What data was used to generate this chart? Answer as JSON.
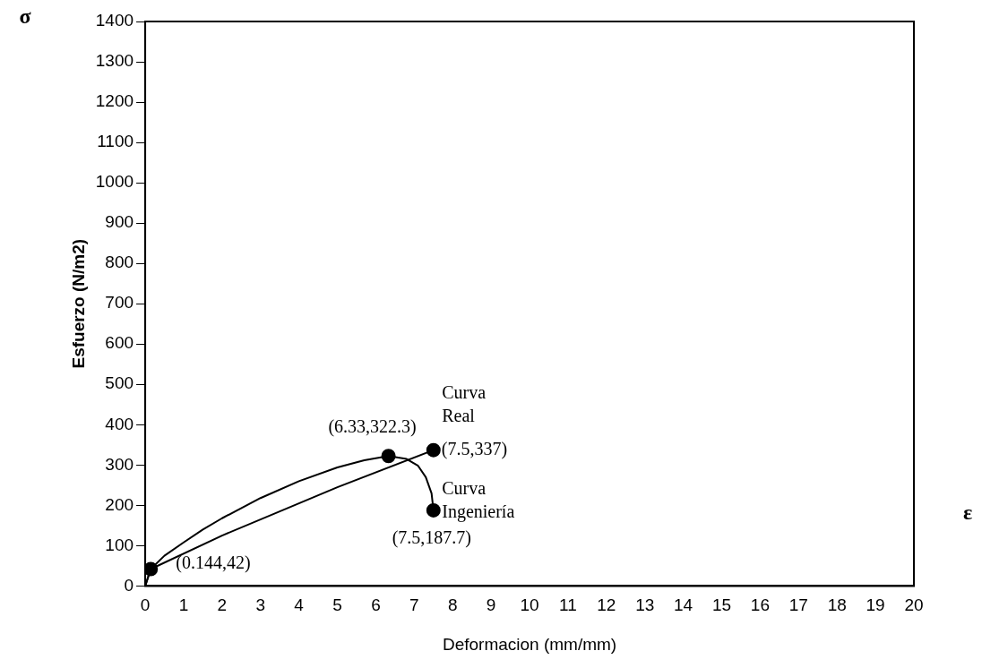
{
  "chart_data": {
    "type": "line",
    "xlabel": "Deformacion (mm/mm)",
    "ylabel": "Esfuerzo (N/m2)",
    "xlim": [
      0,
      20
    ],
    "xticks": [
      0,
      1,
      2,
      3,
      4,
      5,
      6,
      7,
      8,
      9,
      10,
      11,
      12,
      13,
      14,
      15,
      16,
      17,
      18,
      19,
      20
    ],
    "ylim": [
      0,
      1400
    ],
    "yticks": [
      0,
      100,
      200,
      300,
      400,
      500,
      600,
      700,
      800,
      900,
      1000,
      1100,
      1200,
      1300,
      1400
    ],
    "grid": false,
    "legend": false,
    "series": [
      {
        "color": "#000000",
        "marker": "none",
        "x": [
          0,
          0.144,
          0.5,
          1,
          1.5,
          2,
          3,
          4,
          5,
          5.7,
          6.33,
          6.8,
          7.1,
          7.3,
          7.45,
          7.5
        ],
        "values": [
          0,
          42,
          75,
          108,
          140,
          168,
          218,
          260,
          294,
          312,
          322.3,
          315,
          298,
          270,
          230,
          187.7
        ]
      },
      {
        "color": "#000000",
        "marker": "none",
        "x": [
          0,
          0.144,
          2,
          3.5,
          5,
          7.5
        ],
        "values": [
          0,
          42,
          125,
          185,
          245,
          337
        ]
      },
      {
        "type": "scatter",
        "color": "#000000",
        "marker": "circle",
        "x": [
          0.144,
          6.33,
          7.5,
          7.5
        ],
        "values": [
          42,
          322.3,
          337,
          187.7
        ]
      }
    ],
    "annotations": [
      "σ",
      "ε",
      "Curva Real",
      "Curva Ingeniería",
      {
        "text": "(0.144,42)",
        "x": 0.144,
        "y": 42
      },
      {
        "text": "(6.33,322.3)",
        "x": 6.33,
        "y": 322.3
      },
      {
        "text": "(7.5,337)",
        "x": 7.5,
        "y": 337
      },
      {
        "text": "(7.5,187.7)",
        "x": 7.5,
        "y": 187.7
      }
    ]
  }
}
